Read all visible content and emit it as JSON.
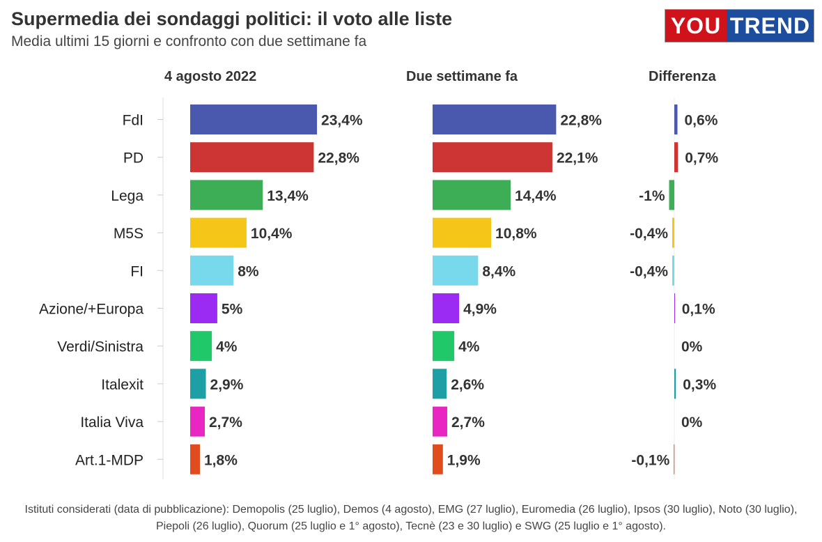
{
  "header": {
    "title": "Supermedia dei sondaggi politici: il voto alle liste",
    "subtitle": "Media ultimi 15 giorni e confronto con due settimane fa",
    "logo_left": "YOU",
    "logo_right": "TREND"
  },
  "columns": {
    "current": "4 agosto 2022",
    "previous": "Due settimane fa",
    "diff": "Differenza"
  },
  "footnote": "Istituti considerati (data di pubblicazione): Demopolis (25 luglio), Demos (4 agosto), EMG (27 luglio), Euromedia (26 luglio), Ipsos (30 luglio), Noto (30 luglio), Piepoli (26 luglio), Quorum (25 luglio e 1° agosto), Tecnè (23 e 30 luglio) e SWG (25 luglio e 1° agosto).",
  "chart_data": {
    "type": "bar",
    "orientation": "horizontal",
    "categories": [
      "FdI",
      "PD",
      "Lega",
      "M5S",
      "FI",
      "Azione/+Europa",
      "Verdi/Sinistra",
      "Italexit",
      "Italia Viva",
      "Art.1-MDP"
    ],
    "colors": [
      "#4a58ad",
      "#cd3434",
      "#3dae55",
      "#f5c518",
      "#78d8ec",
      "#9b2af2",
      "#21c86a",
      "#1e9fa6",
      "#e926c1",
      "#e04c1e"
    ],
    "series": [
      {
        "name": "4 agosto 2022",
        "values": [
          23.4,
          22.8,
          13.4,
          10.4,
          8,
          5,
          4,
          2.9,
          2.7,
          1.8
        ],
        "labels": [
          "23,4%",
          "22,8%",
          "13,4%",
          "10,4%",
          "8%",
          "5%",
          "4%",
          "2,9%",
          "2,7%",
          "1,8%"
        ]
      },
      {
        "name": "Due settimane fa",
        "values": [
          22.8,
          22.1,
          14.4,
          10.8,
          8.4,
          4.9,
          4,
          2.6,
          2.7,
          1.9
        ],
        "labels": [
          "22,8%",
          "22,1%",
          "14,4%",
          "10,8%",
          "8,4%",
          "4,9%",
          "4%",
          "2,6%",
          "2,7%",
          "1,9%"
        ]
      },
      {
        "name": "Differenza",
        "values": [
          0.6,
          0.7,
          -1,
          -0.4,
          -0.4,
          0.1,
          0,
          0.3,
          0,
          -0.1
        ],
        "labels": [
          "0,6%",
          "0,7%",
          "-1%",
          "-0,4%",
          "-0,4%",
          "0,1%",
          "0%",
          "0,3%",
          "0%",
          "-0,1%"
        ]
      }
    ]
  }
}
